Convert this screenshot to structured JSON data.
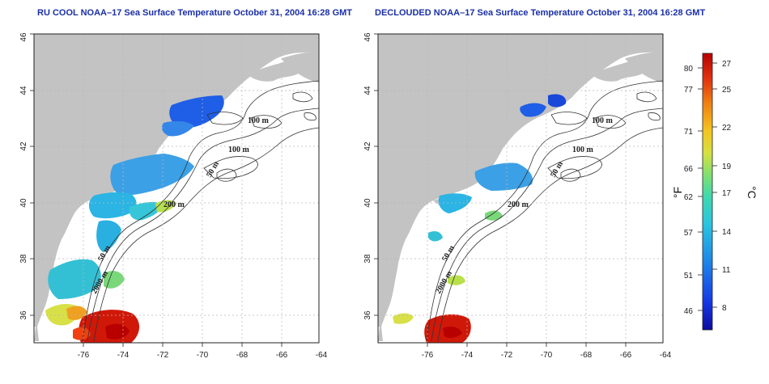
{
  "maps": [
    {
      "id": "left",
      "title": "RU COOL NOAA–17 Sea Surface Temperature October 31, 2004 16:28 GMT",
      "contour_labels": {
        "c100a": "100 m",
        "c100b": "100 m",
        "c50a": "50 m",
        "c200": "200 m",
        "c50b": "50 m",
        "c2000": "2000 m"
      }
    },
    {
      "id": "right",
      "title": "DECLOUDED NOAA–17 Sea Surface Temperature October 31, 2004 16:28 GMT",
      "contour_labels": {
        "c100a": "100 m",
        "c100b": "100 m",
        "c50a": "50 m",
        "c200": "200 m",
        "c50b": "50 m",
        "c2000": "2000 m"
      }
    }
  ],
  "axes": {
    "lon_ticks": [
      "-76",
      "-74",
      "-72",
      "-70",
      "-68",
      "-66",
      "-64"
    ],
    "lat_ticks": [
      "36",
      "38",
      "40",
      "42",
      "44",
      "46"
    ]
  },
  "colorbar": {
    "fahrenheit_ticks": [
      "80",
      "77",
      "71",
      "66",
      "62",
      "57",
      "51",
      "46"
    ],
    "celsius_ticks": [
      "27",
      "25",
      "22",
      "19",
      "17",
      "14",
      "11",
      "8"
    ],
    "fahrenheit_label": "°F",
    "celsius_label": "°C"
  },
  "colors": {
    "land": "#c3c3c3",
    "title": "#1a2fa8",
    "grid": "#b8b8b8",
    "scale": [
      "#0b0ba0",
      "#1538e6",
      "#1e88e8",
      "#29c4e0",
      "#3ed8b0",
      "#7fe070",
      "#d6e040",
      "#f4c420",
      "#f08010",
      "#e03010",
      "#b80000"
    ]
  }
}
